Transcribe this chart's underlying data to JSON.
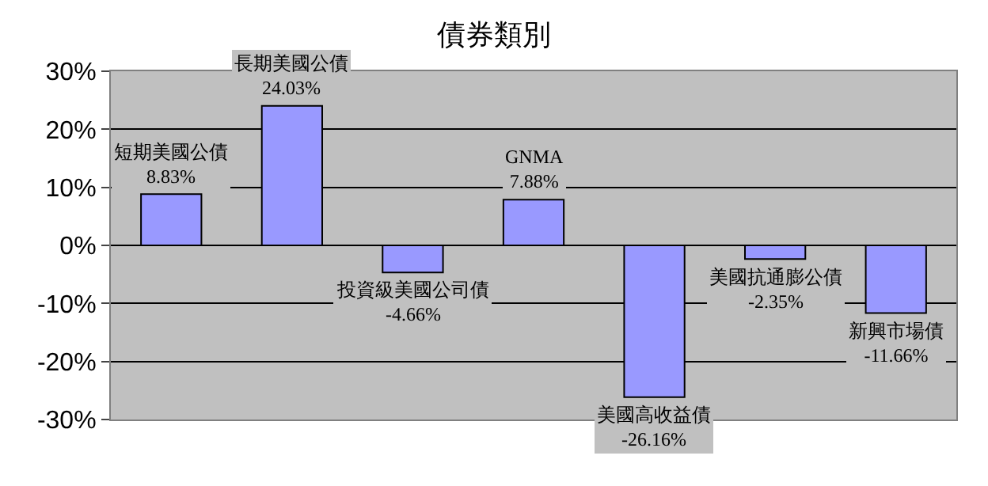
{
  "chart_data": {
    "type": "bar",
    "title": "債券類別",
    "categories": [
      "短期美國公債",
      "長期美國公債",
      "投資級美國公司債",
      "GNMA",
      "美國高收益債",
      "美國抗通膨公債",
      "新興市場債"
    ],
    "values": [
      8.83,
      24.03,
      -4.66,
      7.88,
      -26.16,
      -2.35,
      -11.66
    ],
    "value_labels": [
      "8.83%",
      "24.03%",
      "-4.66%",
      "7.88%",
      "-26.16%",
      "-2.35%",
      "-11.66%"
    ],
    "color": "#9999ff",
    "ylim": [
      -30,
      30
    ],
    "yticks": [
      {
        "value": -30,
        "label": "-30%"
      },
      {
        "value": -20,
        "label": "-20%"
      },
      {
        "value": -10,
        "label": "-10%"
      },
      {
        "value": 0,
        "label": "0%"
      },
      {
        "value": 10,
        "label": "10%"
      },
      {
        "value": 20,
        "label": "20%"
      },
      {
        "value": 30,
        "label": "30%"
      }
    ],
    "grid": "y"
  }
}
